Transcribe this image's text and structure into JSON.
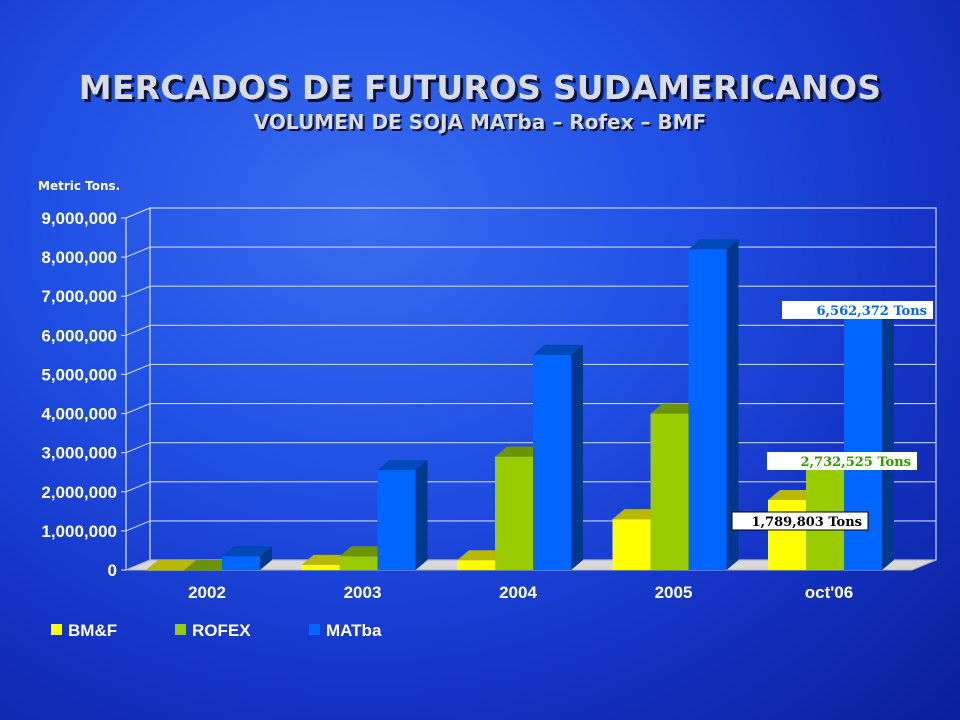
{
  "header": {
    "title": "MERCADOS DE FUTUROS SUDAMERICANOS",
    "subtitle": "VOLUMEN DE SOJA MATba – Rofex – BMF"
  },
  "chart_data": {
    "type": "bar",
    "ylabel": "Metric Tons.",
    "ylim": [
      0,
      9000000
    ],
    "yticks": [
      "0",
      "1,000,000",
      "2,000,000",
      "3,000,000",
      "4,000,000",
      "5,000,000",
      "6,000,000",
      "7,000,000",
      "8,000,000",
      "9,000,000"
    ],
    "categories": [
      "2002",
      "2003",
      "2004",
      "2005",
      "oct'06"
    ],
    "series": [
      {
        "name": "BM&F",
        "color": "#ffff00",
        "values": [
          0,
          130000,
          250000,
          1300000,
          1789803
        ]
      },
      {
        "name": "ROFEX",
        "color": "#99cc00",
        "values": [
          0,
          350000,
          2900000,
          4000000,
          2732525
        ]
      },
      {
        "name": "MATba",
        "color": "#0066ff",
        "values": [
          350000,
          2550000,
          5500000,
          8200000,
          6562372
        ]
      }
    ],
    "annotations": [
      {
        "text": "6,562,372 Tons",
        "series": "MATba",
        "category": "oct'06",
        "color": "#0066ff"
      },
      {
        "text": "2,732,525 Tons",
        "series": "ROFEX",
        "category": "oct'06",
        "color": "#339900"
      },
      {
        "text": "1,789,803  Tons",
        "series": "BM&F",
        "category": "oct'06",
        "color": "#000000"
      }
    ],
    "grid": true,
    "legend": "bottom-left"
  }
}
